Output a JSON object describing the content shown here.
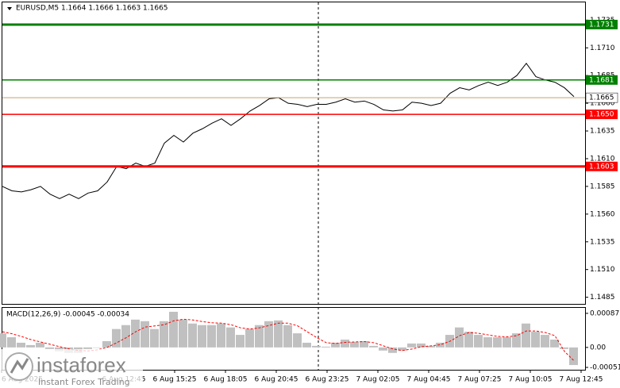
{
  "chart_data": [
    {
      "type": "line",
      "title": "EURUSD,M5  1.1664 1.1666 1.1663 1.1665",
      "ylim": [
        1.1479,
        1.1751
      ],
      "yticks": [
        1.1735,
        {
          "value": 1.171,
          "label": "1.1710"
        },
        1.1685,
        {
          "value": 1.166,
          "label": "1.1660"
        },
        1.1635,
        {
          "value": 1.161,
          "label": "1.1610"
        },
        1.1585,
        {
          "value": 1.156,
          "label": "1.1560"
        },
        1.1535,
        {
          "value": 1.151,
          "label": "1.1510"
        },
        1.1485
      ],
      "xtick_labels": [
        "6 Aug 2025",
        "6 Aug 12:45",
        "6 Aug 15:25",
        "6 Aug 18:05",
        "6 Aug 20:45",
        "6 Aug 23:25",
        "7 Aug 02:05",
        "7 Aug 04:45",
        "7 Aug 07:25",
        "7 Aug 10:05",
        "7 Aug 12:45"
      ],
      "grid": false,
      "series": [
        {
          "color": "#000000",
          "values": [
            1.1585,
            1.1581,
            1.158,
            1.1582,
            1.1585,
            1.1578,
            1.1574,
            1.1578,
            1.1574,
            1.1579,
            1.1581,
            1.1589,
            1.1603,
            1.1601,
            1.1606,
            1.1603,
            1.1606,
            1.1624,
            1.1631,
            1.1625,
            1.1633,
            1.1637,
            1.1642,
            1.1646,
            1.164,
            1.1646,
            1.1653,
            1.1658,
            1.1664,
            1.1665,
            1.166,
            1.1659,
            1.1657,
            1.1659,
            1.1659,
            1.1661,
            1.1664,
            1.1661,
            1.1662,
            1.1659,
            1.1654,
            1.1653,
            1.1654,
            1.1661,
            1.166,
            1.1658,
            1.166,
            1.1669,
            1.1674,
            1.1672,
            1.1676,
            1.1679,
            1.1676,
            1.1679,
            1.1685,
            1.1696,
            1.1684,
            1.1681,
            1.1679,
            1.1674,
            1.1666
          ]
        }
      ],
      "levels": [
        {
          "value": 1.1731,
          "color": "#008000",
          "thick": true
        },
        {
          "value": 1.1681,
          "color": "#008000",
          "thick": false
        },
        {
          "value": {
            "value": 1.165,
            "label": "1.1650"
          },
          "color": "#ff0000",
          "thick": false
        },
        {
          "value": 1.1603,
          "color": "#ff0000",
          "thick": true
        }
      ],
      "current": {
        "value": 1.1665,
        "color": "#c8a070"
      }
    },
    {
      "type": "macd",
      "title": "MACD(12,26,9) -0.00045 -0.00034",
      "ylim": [
        -0.00057,
        0.00101
      ],
      "yticks": [
        0.00087,
        {
          "value": 0,
          "label": "0.00"
        },
        -0.00051
      ],
      "histogram": {
        "color": "#c0c0c0",
        "values": [
          0.00036,
          0.00026,
          0.00012,
          6e-05,
          0.00012,
          -4e-05,
          -0.0001,
          -0.00014,
          -0.00014,
          -4e-05,
          0,
          0.00016,
          0.00047,
          0.00057,
          0.00071,
          0.00067,
          0.00047,
          0.00067,
          0.00091,
          0.00071,
          0.00061,
          0.00057,
          0.00057,
          0.00061,
          0.00051,
          0.00032,
          0.00047,
          0.00057,
          0.00067,
          0.00069,
          0.00057,
          0.00036,
          0.00012,
          4e-05,
          2e-05,
          0.00012,
          0.0002,
          0.00014,
          0.00016,
          4e-05,
          -8e-05,
          -0.00014,
          -8e-05,
          0.0001,
          0.0001,
          4e-05,
          0.00012,
          0.00032,
          0.00051,
          0.0004,
          0.00032,
          0.00026,
          0.00026,
          0.00026,
          0.00036,
          0.00061,
          0.0004,
          0.00032,
          0.0002,
          -4e-05,
          -0.00045
        ]
      },
      "signal": {
        "color": "#ff0000",
        "values": [
          0.0004,
          0.00035,
          0.00028,
          0.0002,
          0.00014,
          8e-05,
          2e-05,
          -4e-05,
          -8e-05,
          -9e-05,
          -6e-05,
          0,
          0.00012,
          0.00025,
          0.0004,
          0.00052,
          0.00055,
          0.00058,
          0.00068,
          0.00072,
          0.0007,
          0.00066,
          0.00063,
          0.00062,
          0.00058,
          0.0005,
          0.00047,
          0.0005,
          0.00056,
          0.00062,
          0.00062,
          0.00055,
          0.0004,
          0.00025,
          0.00012,
          0.0001,
          0.00013,
          0.00014,
          0.00015,
          0.00012,
          4e-05,
          -4e-05,
          -8e-05,
          -4e-05,
          2e-05,
          4e-05,
          7e-05,
          0.00016,
          0.0003,
          0.00038,
          0.00036,
          0.00032,
          0.00028,
          0.00027,
          0.0003,
          0.00042,
          0.00042,
          0.00038,
          0.0003,
          -0.0001,
          -0.00034
        ]
      }
    }
  ],
  "watermark": {
    "brand": "instaforex",
    "tagline": "Instant Forex Trading"
  }
}
